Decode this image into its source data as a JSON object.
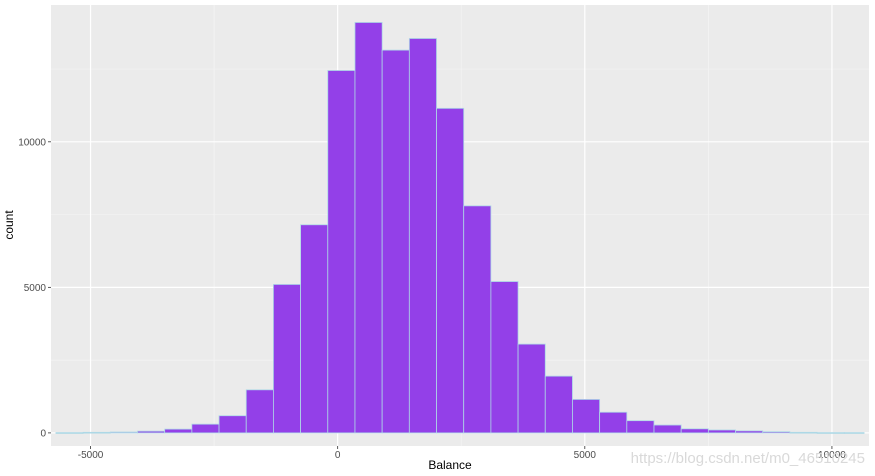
{
  "chart_data": {
    "type": "bar",
    "xlabel": "Balance",
    "ylabel": "count",
    "xlim": [
      -5800,
      10750
    ],
    "ylim": [
      -450,
      14700
    ],
    "x_ticks": [
      -5000,
      0,
      5000,
      10000
    ],
    "y_ticks": [
      0,
      5000,
      10000
    ],
    "x_tick_labels": [
      "-5000",
      "0",
      "5000",
      "10000"
    ],
    "y_tick_labels": [
      "0",
      "5000",
      "10000"
    ],
    "grid": true,
    "bins": [
      {
        "x0": -5700,
        "x1": -5150,
        "count": 10
      },
      {
        "x0": -5150,
        "x1": -4600,
        "count": 20
      },
      {
        "x0": -4600,
        "x1": -4050,
        "count": 30
      },
      {
        "x0": -4050,
        "x1": -3500,
        "count": 60
      },
      {
        "x0": -3500,
        "x1": -2950,
        "count": 130
      },
      {
        "x0": -2950,
        "x1": -2400,
        "count": 300
      },
      {
        "x0": -2400,
        "x1": -1850,
        "count": 590
      },
      {
        "x0": -1850,
        "x1": -1300,
        "count": 1480
      },
      {
        "x0": -1300,
        "x1": -750,
        "count": 5100
      },
      {
        "x0": -750,
        "x1": -200,
        "count": 7150
      },
      {
        "x0": -200,
        "x1": 350,
        "count": 12450
      },
      {
        "x0": 350,
        "x1": 900,
        "count": 14100
      },
      {
        "x0": 900,
        "x1": 1450,
        "count": 13150
      },
      {
        "x0": 1450,
        "x1": 2000,
        "count": 13550
      },
      {
        "x0": 2000,
        "x1": 2550,
        "count": 11150
      },
      {
        "x0": 2550,
        "x1": 3100,
        "count": 7800
      },
      {
        "x0": 3100,
        "x1": 3650,
        "count": 5200
      },
      {
        "x0": 3650,
        "x1": 4200,
        "count": 3050
      },
      {
        "x0": 4200,
        "x1": 4750,
        "count": 1950
      },
      {
        "x0": 4750,
        "x1": 5300,
        "count": 1150
      },
      {
        "x0": 5300,
        "x1": 5850,
        "count": 710
      },
      {
        "x0": 5850,
        "x1": 6400,
        "count": 420
      },
      {
        "x0": 6400,
        "x1": 6950,
        "count": 270
      },
      {
        "x0": 6950,
        "x1": 7500,
        "count": 140
      },
      {
        "x0": 7500,
        "x1": 8050,
        "count": 100
      },
      {
        "x0": 8050,
        "x1": 8600,
        "count": 70
      },
      {
        "x0": 8600,
        "x1": 9150,
        "count": 40
      },
      {
        "x0": 9150,
        "x1": 9700,
        "count": 20
      },
      {
        "x0": 9700,
        "x1": 10250,
        "count": 10
      },
      {
        "x0": 10250,
        "x1": 10650,
        "count": 10
      }
    ],
    "colors": {
      "fill": "#9340e8",
      "bar_border": "#add8e6",
      "panel_background": "#ebebeb",
      "grid_major": "#ffffff",
      "grid_minor": "#f4f4f4"
    }
  },
  "watermark": "https://blog.csdn.net/m0_46510245"
}
